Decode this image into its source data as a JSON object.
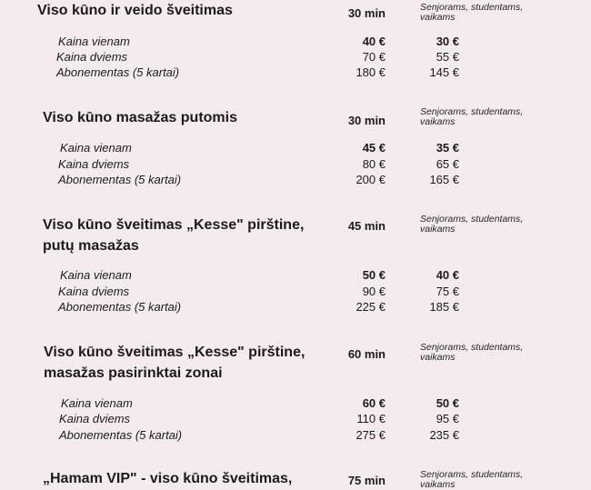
{
  "services": [
    {
      "title": "Viso kūno ir veido šveitimas",
      "duration": "30 min",
      "note": "Senjorams, studentams, vaikams",
      "rows": [
        {
          "label": "Kaina vienam",
          "price": "40 €",
          "reduced": "30 €"
        },
        {
          "label": "Kaina dviems",
          "price": "70 €",
          "reduced": "55 €"
        },
        {
          "label": "Abonementas (5 kartai)",
          "price": "180 €",
          "reduced": "145 €"
        }
      ]
    },
    {
      "title": "Viso kūno masažas putomis",
      "duration": "30 min",
      "note": "Senjorams, studentams, vaikams",
      "rows": [
        {
          "label": "Kaina vienam",
          "price": "45 €",
          "reduced": "35 €"
        },
        {
          "label": "Kaina dviems",
          "price": "80 €",
          "reduced": "65 €"
        },
        {
          "label": "Abonementas (5 kartai)",
          "price": "200 €",
          "reduced": "165 €"
        }
      ]
    },
    {
      "title": "Viso kūno šveitimas „Kesse\" pirštine, putų masažas",
      "duration": "45 min",
      "note": "Senjorams, studentams, vaikams",
      "rows": [
        {
          "label": "Kaina vienam",
          "price": "50 €",
          "reduced": "40 €"
        },
        {
          "label": "Kaina dviems",
          "price": "90 €",
          "reduced": "75 €"
        },
        {
          "label": "Abonementas (5 kartai)",
          "price": "225 €",
          "reduced": "185 €"
        }
      ]
    },
    {
      "title": "Viso kūno šveitimas „Kesse\" pirštine, masažas pasirinktai zonai",
      "duration": "60 min",
      "note": "Senjorams, studentams, vaikams",
      "rows": [
        {
          "label": "Kaina vienam",
          "price": "60 €",
          "reduced": "50 €"
        },
        {
          "label": "Kaina dviems",
          "price": "110 €",
          "reduced": "95 €"
        },
        {
          "label": "Abonementas (5 kartai)",
          "price": "275 €",
          "reduced": "235 €"
        }
      ]
    },
    {
      "title": "„Hamam VIP\" - viso kūno šveitimas,",
      "duration": "75 min",
      "note": "Senjorams, studentams, vaikams",
      "rows": []
    }
  ]
}
